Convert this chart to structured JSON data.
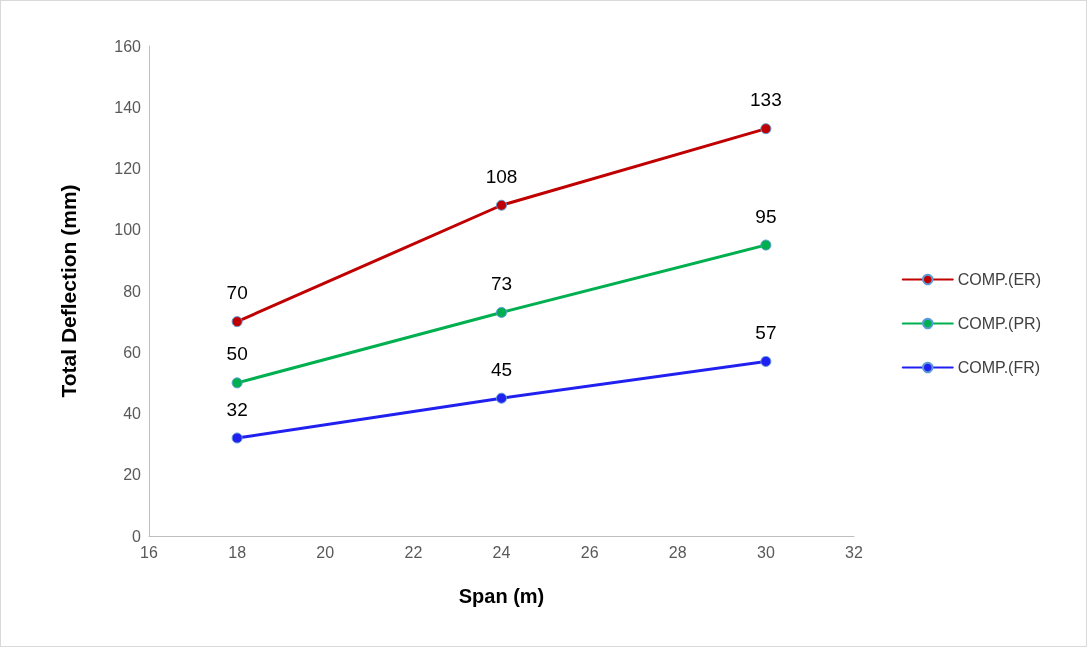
{
  "chart_data": {
    "type": "line",
    "xlabel": "Span (m)",
    "ylabel": "Total Deflection (mm)",
    "x": [
      18,
      24,
      30
    ],
    "series": [
      {
        "name": "COMP.(ER)",
        "color": "#c00000",
        "values": [
          70,
          108,
          133
        ]
      },
      {
        "name": "COMP.(PR)",
        "color": "#00b050",
        "values": [
          50,
          73,
          95
        ]
      },
      {
        "name": "COMP.(FR)",
        "color": "#2020f0",
        "values": [
          32,
          45,
          57
        ]
      }
    ],
    "xlim": [
      16,
      32
    ],
    "xticks": [
      16,
      18,
      20,
      22,
      24,
      26,
      28,
      30,
      32
    ],
    "ylim": [
      0,
      160
    ],
    "yticks": [
      0,
      20,
      40,
      60,
      80,
      100,
      120,
      140,
      160
    ],
    "grid": false,
    "legend": "right",
    "marker": "circle",
    "line_style": "solid",
    "data_labels": true
  }
}
